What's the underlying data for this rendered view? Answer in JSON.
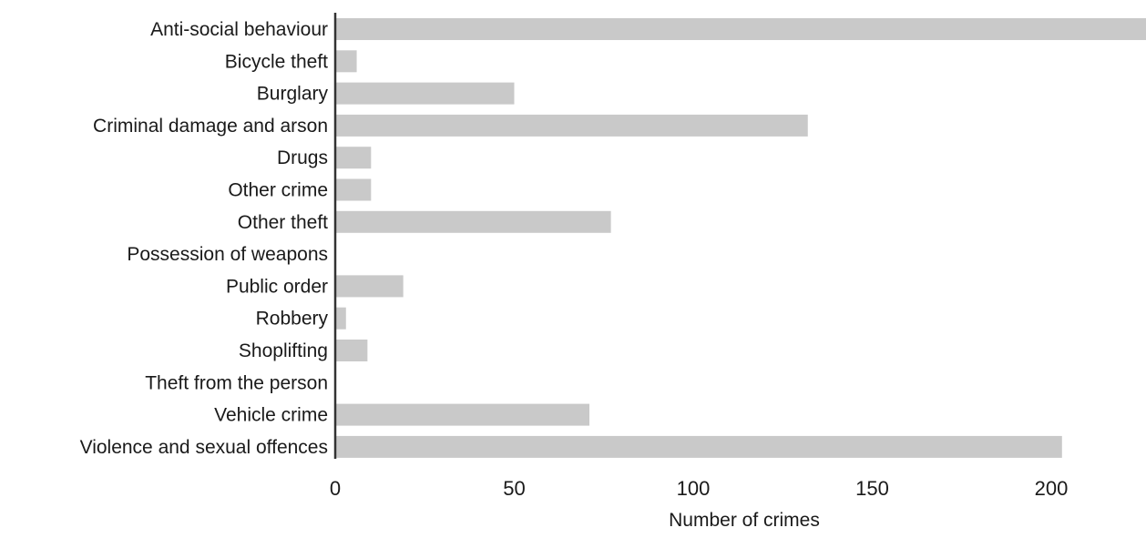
{
  "chart_data": {
    "type": "bar",
    "orientation": "horizontal",
    "title": "",
    "xlabel": "Number of crimes",
    "ylabel": "",
    "xlim": [
      0,
      227
    ],
    "xticks": [
      0,
      50,
      100,
      150,
      200
    ],
    "grid": false,
    "categories": [
      "Anti-social behaviour",
      "Bicycle theft",
      "Burglary",
      "Criminal damage and arson",
      "Drugs",
      "Other crime",
      "Other theft",
      "Possession of weapons",
      "Public order",
      "Robbery",
      "Shoplifting",
      "Theft from the person",
      "Vehicle crime",
      "Violence and sexual offences"
    ],
    "values": [
      227,
      6,
      50,
      132,
      10,
      10,
      77,
      0,
      19,
      3,
      9,
      0,
      71,
      203
    ],
    "colors": {
      "bar": "#c9c9c9",
      "axis": "#333333",
      "text": "#1a1a1a"
    }
  }
}
